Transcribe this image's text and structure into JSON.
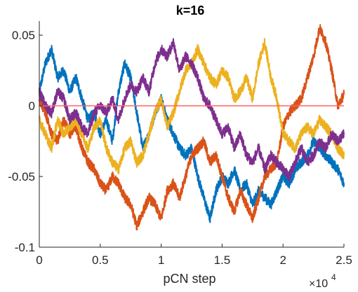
{
  "chart_data": {
    "type": "line",
    "title": "k=16",
    "xlabel": "pCN step",
    "ylabel": "",
    "xlim": [
      0,
      25000
    ],
    "ylim": [
      -0.1,
      0.06
    ],
    "x_tick_labels": [
      "0",
      "0.5",
      "1",
      "1.5",
      "2",
      "2.5"
    ],
    "x_tick_values": [
      0,
      5000,
      10000,
      15000,
      20000,
      25000
    ],
    "x_exponent_base": "×10",
    "x_exponent_power": "4",
    "y_tick_labels": [
      "-0.1",
      "-0.05",
      "0",
      "0.05"
    ],
    "y_tick_values": [
      -0.1,
      -0.05,
      0,
      0.05
    ],
    "reference_line": {
      "y": 0,
      "color": "#FF6666"
    },
    "series": [
      {
        "color": "#0072BD",
        "x": [
          0,
          500,
          1000,
          1500,
          2000,
          2500,
          3000,
          3500,
          4000,
          4500,
          5000,
          5500,
          6000,
          6500,
          7000,
          7500,
          8000,
          8500,
          9000,
          9500,
          10000,
          10500,
          11000,
          11500,
          12000,
          12500,
          13000,
          13500,
          14000,
          14500,
          15000,
          15500,
          16000,
          16500,
          17000,
          17500,
          18000,
          18500,
          19000,
          19500,
          20000,
          20500,
          21000,
          21500,
          22000,
          22500,
          23000,
          23500,
          24000,
          24500,
          25000
        ],
        "y": [
          0.01,
          0.03,
          0.04,
          0.02,
          0.025,
          0.01,
          0.02,
          0.005,
          -0.01,
          -0.005,
          -0.02,
          -0.01,
          -0.025,
          0.01,
          0.03,
          0.02,
          -0.005,
          -0.03,
          -0.02,
          -0.005,
          0.005,
          -0.01,
          -0.02,
          -0.03,
          -0.035,
          -0.03,
          -0.05,
          -0.065,
          -0.08,
          -0.06,
          -0.05,
          -0.055,
          -0.045,
          -0.06,
          -0.055,
          -0.07,
          -0.06,
          -0.065,
          -0.07,
          -0.06,
          -0.05,
          -0.055,
          -0.045,
          -0.04,
          -0.035,
          -0.025,
          -0.03,
          -0.035,
          -0.04,
          -0.045,
          -0.055
        ]
      },
      {
        "color": "#D95319",
        "x": [
          0,
          500,
          1000,
          1500,
          2000,
          2500,
          3000,
          3500,
          4000,
          4500,
          5000,
          5500,
          6000,
          6500,
          7000,
          7500,
          8000,
          8500,
          9000,
          9500,
          10000,
          10500,
          11000,
          11500,
          12000,
          12500,
          13000,
          13500,
          14000,
          14500,
          15000,
          15500,
          16000,
          16500,
          17000,
          17500,
          18000,
          18500,
          19000,
          19500,
          20000,
          20500,
          21000,
          21500,
          22000,
          22500,
          23000,
          23500,
          24000,
          24500,
          25000
        ],
        "y": [
          0.005,
          -0.005,
          -0.02,
          -0.025,
          -0.01,
          -0.02,
          -0.015,
          -0.03,
          -0.04,
          -0.045,
          -0.055,
          -0.06,
          -0.05,
          -0.055,
          -0.065,
          -0.07,
          -0.085,
          -0.075,
          -0.065,
          -0.07,
          -0.08,
          -0.06,
          -0.055,
          -0.065,
          -0.05,
          -0.035,
          -0.03,
          -0.025,
          -0.04,
          -0.035,
          -0.05,
          -0.065,
          -0.075,
          -0.06,
          -0.07,
          -0.08,
          -0.065,
          -0.05,
          -0.045,
          -0.04,
          -0.015,
          -0.005,
          0.0,
          0.005,
          0.02,
          0.035,
          0.055,
          0.045,
          0.025,
          0.0,
          0.008
        ]
      },
      {
        "color": "#EDB120",
        "x": [
          0,
          500,
          1000,
          1500,
          2000,
          2500,
          3000,
          3500,
          4000,
          4500,
          5000,
          5500,
          6000,
          6500,
          7000,
          7500,
          8000,
          8500,
          9000,
          9500,
          10000,
          10500,
          11000,
          11500,
          12000,
          12500,
          13000,
          13500,
          14000,
          14500,
          15000,
          15500,
          16000,
          16500,
          17000,
          17500,
          18000,
          18500,
          19000,
          19500,
          20000,
          20500,
          21000,
          21500,
          22000,
          22500,
          23000,
          23500,
          24000,
          24500,
          25000
        ],
        "y": [
          -0.01,
          -0.02,
          -0.03,
          -0.01,
          -0.02,
          -0.015,
          -0.01,
          -0.02,
          -0.03,
          -0.015,
          -0.01,
          -0.03,
          -0.04,
          -0.045,
          -0.03,
          -0.025,
          -0.04,
          -0.035,
          -0.02,
          -0.005,
          0.005,
          -0.015,
          -0.005,
          0.01,
          0.025,
          0.03,
          0.04,
          0.03,
          0.02,
          0.015,
          0.025,
          0.02,
          0.005,
          0.01,
          0.02,
          0.005,
          0.03,
          0.045,
          0.02,
          0.005,
          -0.02,
          -0.025,
          -0.03,
          -0.02,
          -0.015,
          -0.02,
          -0.01,
          -0.015,
          -0.02,
          -0.03,
          -0.035
        ]
      },
      {
        "color": "#7E2F8E",
        "x": [
          0,
          500,
          1000,
          1500,
          2000,
          2500,
          3000,
          3500,
          4000,
          4500,
          5000,
          5500,
          6000,
          6500,
          7000,
          7500,
          8000,
          8500,
          9000,
          9500,
          10000,
          10500,
          11000,
          11500,
          12000,
          12500,
          13000,
          13500,
          14000,
          14500,
          15000,
          15500,
          16000,
          16500,
          17000,
          17500,
          18000,
          18500,
          19000,
          19500,
          20000,
          20500,
          21000,
          21500,
          22000,
          22500,
          23000,
          23500,
          24000,
          24500,
          25000
        ],
        "y": [
          0.01,
          0.0,
          -0.005,
          0.01,
          0.005,
          -0.01,
          -0.005,
          -0.015,
          -0.02,
          -0.005,
          0.0,
          -0.005,
          0.005,
          -0.01,
          0.005,
          0.015,
          0.01,
          0.02,
          0.01,
          0.03,
          0.04,
          0.035,
          0.045,
          0.025,
          0.035,
          0.03,
          0.02,
          0.005,
          0.0,
          -0.01,
          -0.02,
          -0.015,
          -0.03,
          -0.02,
          -0.035,
          -0.04,
          -0.03,
          -0.045,
          -0.035,
          -0.04,
          -0.045,
          -0.05,
          -0.04,
          -0.03,
          -0.04,
          -0.035,
          -0.025,
          -0.03,
          -0.02,
          -0.025,
          -0.02
        ]
      }
    ]
  }
}
